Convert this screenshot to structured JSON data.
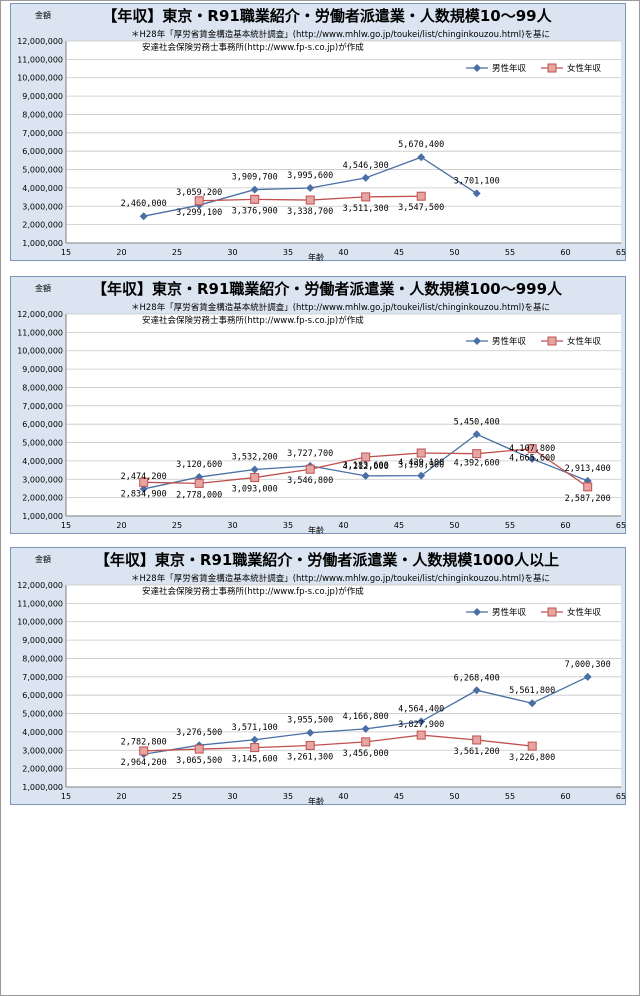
{
  "chart_data": [
    {
      "type": "line",
      "title": "【年収】東京・R91職業紹介・労働者派遣業・人数規模10～99人",
      "note_line1": "＊H28年「厚労省賃金構造基本統計調査」(http://www.mhlw.go.jp/toukei/list/chinginkouzou.html)を基に",
      "note_line2": "安達社会保険労務士事務所(http://www.fp-s.co.jp)が作成",
      "ylabel": "金額",
      "xlabel": "年齢",
      "xlim": [
        15,
        65
      ],
      "ylim": [
        1000000,
        12000000
      ],
      "x_ticks": [
        "15",
        "20",
        "25",
        "30",
        "35",
        "40",
        "45",
        "50",
        "55",
        "60",
        "65"
      ],
      "y_ticks": [
        "1,000,000",
        "2,000,000",
        "3,000,000",
        "4,000,000",
        "5,000,000",
        "6,000,000",
        "7,000,000",
        "8,000,000",
        "9,000,000",
        "10,000,000",
        "11,000,000",
        "12,000,000"
      ],
      "grid": true,
      "legend_position": "top-right",
      "series": [
        {
          "name": "男性年収",
          "color": "#4a6fa5",
          "marker": "diamond",
          "x": [
            22,
            27,
            32,
            37,
            42,
            47,
            52
          ],
          "values": [
            2460000,
            3059200,
            3909700,
            3995600,
            4546300,
            5670400,
            3701100
          ],
          "labels": [
            "2,460,000",
            "3,059,200",
            "3,909,700",
            "3,995,600",
            "4,546,300",
            "5,670,400",
            "3,701,100"
          ]
        },
        {
          "name": "女性年収",
          "color": "#c0504d",
          "marker": "square",
          "x": [
            27,
            32,
            37,
            42,
            47
          ],
          "values": [
            3299100,
            3376900,
            3338700,
            3511300,
            3547500
          ],
          "labels": [
            "3,299,100",
            "3,376,900",
            "3,338,700",
            "3,511,300",
            "3,547,500"
          ]
        }
      ]
    },
    {
      "type": "line",
      "title": "【年収】東京・R91職業紹介・労働者派遣業・人数規模100～999人",
      "note_line1": "＊H28年「厚労省賃金構造基本統計調査」(http://www.mhlw.go.jp/toukei/list/chinginkouzou.html)を基に",
      "note_line2": "安達社会保険労務士事務所(http://www.fp-s.co.jp)が作成",
      "ylabel": "金額",
      "xlabel": "年齢",
      "xlim": [
        15,
        65
      ],
      "ylim": [
        1000000,
        12000000
      ],
      "x_ticks": [
        "15",
        "20",
        "25",
        "30",
        "35",
        "40",
        "45",
        "50",
        "55",
        "60",
        "65"
      ],
      "y_ticks": [
        "1,000,000",
        "2,000,000",
        "3,000,000",
        "4,000,000",
        "5,000,000",
        "6,000,000",
        "7,000,000",
        "8,000,000",
        "9,000,000",
        "10,000,000",
        "11,000,000",
        "12,000,000"
      ],
      "grid": true,
      "legend_position": "top-right",
      "series": [
        {
          "name": "男性年収",
          "color": "#4a6fa5",
          "marker": "diamond",
          "x": [
            22,
            27,
            32,
            37,
            42,
            47,
            52,
            57,
            62
          ],
          "values": [
            2474200,
            3120600,
            3532200,
            3727700,
            3183600,
            3198900,
            5450400,
            4107800,
            2913400
          ],
          "labels": [
            "2,474,200",
            "3,120,600",
            "3,532,200",
            "3,727,700",
            "3,183,600",
            "3,198,900",
            "5,450,400",
            "4,107,800",
            "2,913,400"
          ]
        },
        {
          "name": "女性年収",
          "color": "#c0504d",
          "marker": "square",
          "x": [
            22,
            27,
            32,
            37,
            42,
            47,
            52,
            57,
            62
          ],
          "values": [
            2834900,
            2778000,
            3093000,
            3546800,
            4212000,
            4429100,
            4392600,
            4665600,
            2587200
          ],
          "labels": [
            "2,834,900",
            "2,778,000",
            "3,093,000",
            "3,546,800",
            "4,212,000",
            "4,429,100",
            "4,392,600",
            "4,665,600",
            "2,587,200"
          ]
        }
      ]
    },
    {
      "type": "line",
      "title": "【年収】東京・R91職業紹介・労働者派遣業・人数規模1000人以上",
      "note_line1": "＊H28年「厚労省賃金構造基本統計調査」(http://www.mhlw.go.jp/toukei/list/chinginkouzou.html)を基に",
      "note_line2": "安達社会保険労務士事務所(http://www.fp-s.co.jp)が作成",
      "ylabel": "金額",
      "xlabel": "年齢",
      "xlim": [
        15,
        65
      ],
      "ylim": [
        1000000,
        12000000
      ],
      "x_ticks": [
        "15",
        "20",
        "25",
        "30",
        "35",
        "40",
        "45",
        "50",
        "55",
        "60",
        "65"
      ],
      "y_ticks": [
        "1,000,000",
        "2,000,000",
        "3,000,000",
        "4,000,000",
        "5,000,000",
        "6,000,000",
        "7,000,000",
        "8,000,000",
        "9,000,000",
        "10,000,000",
        "11,000,000",
        "12,000,000"
      ],
      "grid": true,
      "legend_position": "top-right",
      "series": [
        {
          "name": "男性年収",
          "color": "#4a6fa5",
          "marker": "diamond",
          "x": [
            22,
            27,
            32,
            37,
            42,
            47,
            52,
            57,
            62
          ],
          "values": [
            2782800,
            3276500,
            3571100,
            3955500,
            4166800,
            4564400,
            6268400,
            5561800,
            7000300
          ],
          "labels": [
            "2,782,800",
            "3,276,500",
            "3,571,100",
            "3,955,500",
            "4,166,800",
            "4,564,400",
            "6,268,400",
            "5,561,800",
            "7,000,300"
          ]
        },
        {
          "name": "女性年収",
          "color": "#c0504d",
          "marker": "square",
          "x": [
            22,
            27,
            32,
            37,
            42,
            47,
            52,
            57
          ],
          "values": [
            2964200,
            3065500,
            3145600,
            3261300,
            3456000,
            3827900,
            3561200,
            3226800
          ],
          "labels": [
            "2,964,200",
            "3,065,500",
            "3,145,600",
            "3,261,300",
            "3,456,000",
            "3,827,900",
            "3,561,200",
            "3,226,800"
          ]
        }
      ]
    }
  ]
}
